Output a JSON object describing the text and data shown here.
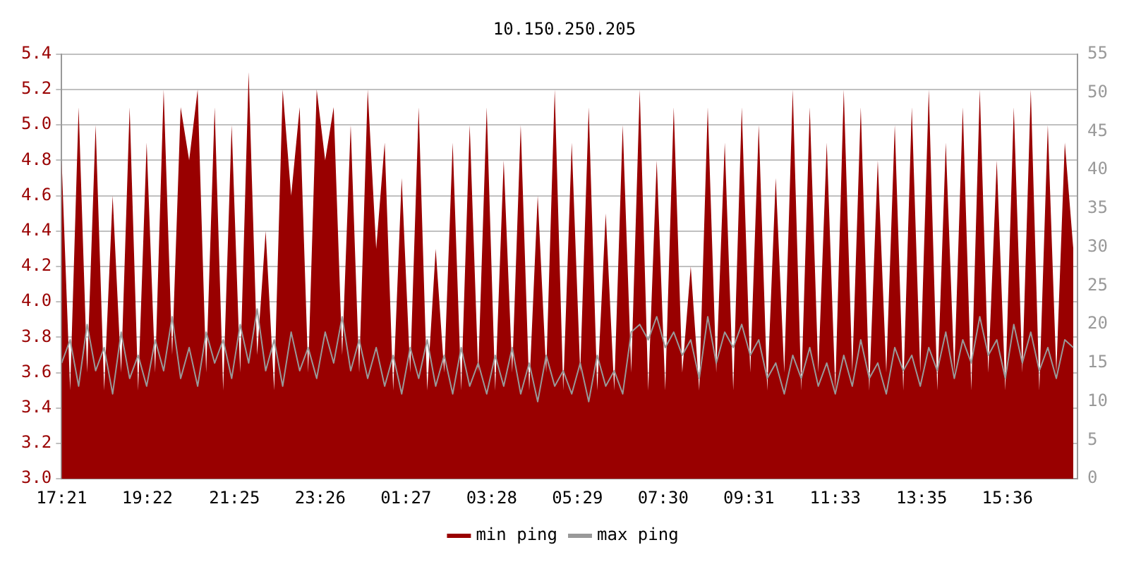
{
  "chart_data": {
    "type": "area",
    "title": "10.150.250.205",
    "x": [
      "--01-01T17:21",
      "--01-01T17:33",
      "--01-01T17:45",
      "--01-01T17:57",
      "--01-01T18:09",
      "--01-01T18:21",
      "--01-01T18:33",
      "--01-01T18:45",
      "--01-01T18:57",
      "--01-01T19:09",
      "--01-01T19:21",
      "--01-01T19:33",
      "--01-01T19:45",
      "--01-01T19:57",
      "--01-01T20:09",
      "--01-01T20:21",
      "--01-01T20:33",
      "--01-01T20:45",
      "--01-01T20:57",
      "--01-01T21:09",
      "--01-01T21:21",
      "--01-01T21:33",
      "--01-01T21:45",
      "--01-01T21:57",
      "--01-01T22:09",
      "--01-01T22:21",
      "--01-01T22:33",
      "--01-01T22:45",
      "--01-01T22:57",
      "--01-01T23:09",
      "--01-01T23:21",
      "--01-01T23:33",
      "--01-01T23:45",
      "--01-01T23:57",
      "--01-02T00:09",
      "--01-02T00:21",
      "--01-02T00:33",
      "--01-02T00:45",
      "--01-02T00:57",
      "--01-02T01:09",
      "--01-02T01:21",
      "--01-02T01:33",
      "--01-02T01:45",
      "--01-02T01:57",
      "--01-02T02:09",
      "--01-02T02:21",
      "--01-02T02:33",
      "--01-02T02:45",
      "--01-02T02:57",
      "--01-02T03:09",
      "--01-02T03:21",
      "--01-02T03:33",
      "--01-02T03:45",
      "--01-02T03:57",
      "--01-02T04:09",
      "--01-02T04:21",
      "--01-02T04:33",
      "--01-02T04:45",
      "--01-02T04:57",
      "--01-02T05:09",
      "--01-02T05:21",
      "--01-02T05:33",
      "--01-02T05:45",
      "--01-02T05:57",
      "--01-02T06:09",
      "--01-02T06:21",
      "--01-02T06:33",
      "--01-02T06:45",
      "--01-02T06:57",
      "--01-02T07:09",
      "--01-02T07:21",
      "--01-02T07:33",
      "--01-02T07:45",
      "--01-02T07:57",
      "--01-02T08:09",
      "--01-02T08:21",
      "--01-02T08:33",
      "--01-02T08:45",
      "--01-02T08:57",
      "--01-02T09:09",
      "--01-02T09:21",
      "--01-02T09:33",
      "--01-02T09:45",
      "--01-02T09:57",
      "--01-02T10:09",
      "--01-02T10:21",
      "--01-02T10:33",
      "--01-02T10:45",
      "--01-02T10:57",
      "--01-02T11:09",
      "--01-02T11:21",
      "--01-02T11:33",
      "--01-02T11:45",
      "--01-02T11:57",
      "--01-02T12:09",
      "--01-02T12:21",
      "--01-02T12:33",
      "--01-02T12:45",
      "--01-02T12:57",
      "--01-02T13:09",
      "--01-02T13:21",
      "--01-02T13:33",
      "--01-02T13:45",
      "--01-02T13:57",
      "--01-02T14:09",
      "--01-02T14:21",
      "--01-02T14:33",
      "--01-02T14:45",
      "--01-02T14:57",
      "--01-02T15:09",
      "--01-02T15:21",
      "--01-02T15:33",
      "--01-02T15:45",
      "--01-02T15:57",
      "--01-02T16:09",
      "--01-02T16:21",
      "--01-02T16:33",
      "--01-02T16:45",
      "--01-02T16:57",
      "--01-02T17:09"
    ],
    "series": [
      {
        "name": "min ping",
        "color": "#990000",
        "values": [
          4.8,
          3.5,
          5.1,
          3.6,
          5.0,
          3.5,
          4.6,
          3.6,
          5.1,
          3.5,
          4.9,
          3.6,
          5.2,
          3.7,
          5.1,
          4.8,
          5.2,
          3.6,
          5.1,
          3.5,
          5.0,
          3.6,
          5.3,
          3.7,
          4.4,
          3.5,
          5.2,
          4.6,
          5.1,
          3.6,
          5.2,
          4.8,
          5.1,
          3.7,
          5.0,
          3.6,
          5.2,
          4.3,
          4.9,
          3.5,
          4.7,
          3.6,
          5.1,
          3.5,
          4.3,
          3.6,
          4.9,
          3.5,
          5.0,
          3.6,
          5.1,
          3.5,
          4.8,
          3.6,
          5.0,
          3.5,
          4.6,
          3.6,
          5.2,
          3.5,
          4.9,
          3.6,
          5.1,
          3.5,
          4.5,
          3.5,
          5.0,
          3.6,
          5.2,
          3.5,
          4.8,
          3.5,
          5.1,
          3.6,
          4.2,
          3.5,
          5.1,
          3.6,
          4.9,
          3.5,
          5.1,
          3.6,
          5.0,
          3.5,
          4.7,
          3.6,
          5.2,
          3.5,
          5.1,
          3.6,
          4.9,
          3.5,
          5.2,
          3.6,
          5.1,
          3.5,
          4.8,
          3.6,
          5.0,
          3.5,
          5.1,
          3.6,
          5.2,
          3.5,
          4.9,
          3.6,
          5.1,
          3.5,
          5.2,
          3.6,
          4.8,
          3.5,
          5.1,
          3.6,
          5.2,
          3.5,
          5.0,
          3.6,
          4.9,
          4.3
        ]
      },
      {
        "name": "max ping",
        "type": "line",
        "axis": "y2",
        "color": "#999999",
        "values": [
          15,
          18,
          12,
          20,
          14,
          17,
          11,
          19,
          13,
          16,
          12,
          18,
          14,
          21,
          13,
          17,
          12,
          19,
          15,
          18,
          13,
          20,
          15,
          22,
          14,
          18,
          12,
          19,
          14,
          17,
          13,
          19,
          15,
          21,
          14,
          18,
          13,
          17,
          12,
          16,
          11,
          17,
          13,
          18,
          12,
          16,
          11,
          17,
          12,
          15,
          11,
          16,
          12,
          17,
          11,
          15,
          10,
          16,
          12,
          14,
          11,
          15,
          10,
          16,
          12,
          14,
          11,
          19,
          20,
          18,
          21,
          17,
          19,
          16,
          18,
          13,
          21,
          15,
          19,
          17,
          20,
          16,
          18,
          13,
          15,
          11,
          16,
          13,
          17,
          12,
          15,
          11,
          16,
          12,
          18,
          13,
          15,
          11,
          17,
          14,
          16,
          12,
          17,
          14,
          19,
          13,
          18,
          15,
          21,
          16,
          18,
          13,
          20,
          15,
          19,
          14,
          17,
          13,
          18,
          17
        ]
      }
    ],
    "xlim": [
      "--01-01T17:21",
      "--01-02T17:15"
    ],
    "xticks": [
      {
        "value": "--01-01T17:21",
        "label": "17:21"
      },
      {
        "value": "--01-01T19:22",
        "label": "19:22"
      },
      {
        "value": "--01-01T21:25",
        "label": "21:25"
      },
      {
        "value": "--01-01T23:26",
        "label": "23:26"
      },
      {
        "value": "--01-02T01:27",
        "label": "01:27"
      },
      {
        "value": "--01-02T03:28",
        "label": "03:28"
      },
      {
        "value": "--01-02T05:29",
        "label": "05:29"
      },
      {
        "value": "--01-02T07:30",
        "label": "07:30"
      },
      {
        "value": "--01-02T09:31",
        "label": "09:31"
      },
      {
        "value": "--01-02T11:33",
        "label": "11:33"
      },
      {
        "value": "--01-02T13:35",
        "label": "13:35"
      },
      {
        "value": "--01-02T15:36",
        "label": "15:36"
      }
    ],
    "ylim": [
      3.0,
      5.4
    ],
    "yticks": [
      {
        "value": 3.0,
        "label": "3.0"
      },
      3.2,
      3.4,
      3.6,
      3.8,
      {
        "value": 4.0,
        "label": "4.0"
      },
      4.2,
      4.4,
      4.6,
      4.8,
      {
        "value": 5.0,
        "label": "5.0"
      },
      5.2,
      5.4
    ],
    "y2lim": [
      0,
      55
    ],
    "y2ticks": [
      0,
      5,
      10,
      15,
      20,
      25,
      30,
      35,
      40,
      45,
      50,
      55
    ],
    "grid": "y",
    "legend": "bottom"
  }
}
